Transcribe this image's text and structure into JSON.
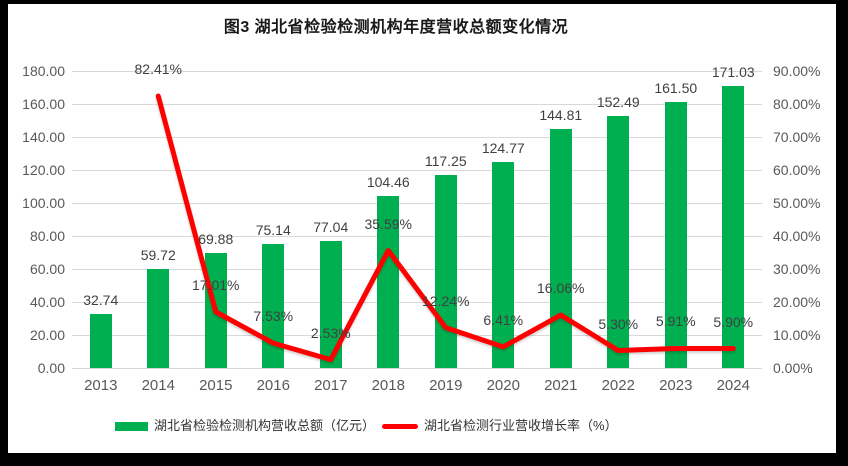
{
  "title": "图3 湖北省检验检测机构年度营收总额变化情况",
  "colors": {
    "bar": "#00B050",
    "line": "#FF0000",
    "grid": "#D9D9D9",
    "axis_text": "#595959",
    "data_label_text": "#404040",
    "frame_background": "#000000",
    "canvas_background": "#FFFFFF"
  },
  "chart_data": {
    "type": "bar",
    "subtype": "combo-bar-line-dual-axis",
    "title": "图3 湖北省检验检测机构年度营收总额变化情况",
    "categories": [
      "2013",
      "2014",
      "2015",
      "2016",
      "2017",
      "2018",
      "2019",
      "2020",
      "2021",
      "2022",
      "2023",
      "2024"
    ],
    "series": [
      {
        "name": "湖北省检验检测机构营收总额（亿元）",
        "type": "bar",
        "axis": "left",
        "color": "#00B050",
        "values": [
          32.74,
          59.72,
          69.88,
          75.14,
          77.04,
          104.46,
          117.25,
          124.77,
          144.81,
          152.49,
          161.5,
          171.03
        ],
        "labels": [
          "32.74",
          "59.72",
          "69.88",
          "75.14",
          "77.04",
          "104.46",
          "117.25",
          "124.77",
          "144.81",
          "152.49",
          "161.50",
          "171.03"
        ]
      },
      {
        "name": "湖北省检测行业营收增长率（%）",
        "type": "line",
        "axis": "right",
        "color": "#FF0000",
        "values": [
          null,
          82.41,
          17.01,
          7.53,
          2.53,
          35.59,
          12.24,
          6.41,
          16.06,
          5.3,
          5.91,
          5.9
        ],
        "labels": [
          null,
          "82.41%",
          "17.01%",
          "7.53%",
          "2.53%",
          "35.59%",
          "12.24%",
          "6.41%",
          "16.06%",
          "5.30%",
          "5.91%",
          "5.90%"
        ]
      }
    ],
    "left_axis": {
      "min": 0,
      "max": 180,
      "step": 20,
      "tick_labels": [
        "0.00",
        "20.00",
        "40.00",
        "60.00",
        "80.00",
        "100.00",
        "120.00",
        "140.00",
        "160.00",
        "180.00"
      ]
    },
    "right_axis": {
      "min": 0,
      "max": 90,
      "step": 10,
      "tick_labels": [
        "0.00%",
        "10.00%",
        "20.00%",
        "30.00%",
        "40.00%",
        "50.00%",
        "60.00%",
        "70.00%",
        "80.00%",
        "90.00%"
      ]
    },
    "grid": true,
    "legend_position": "bottom",
    "xlabel": "",
    "ylabel_left": "亿元",
    "ylabel_right": "%"
  }
}
